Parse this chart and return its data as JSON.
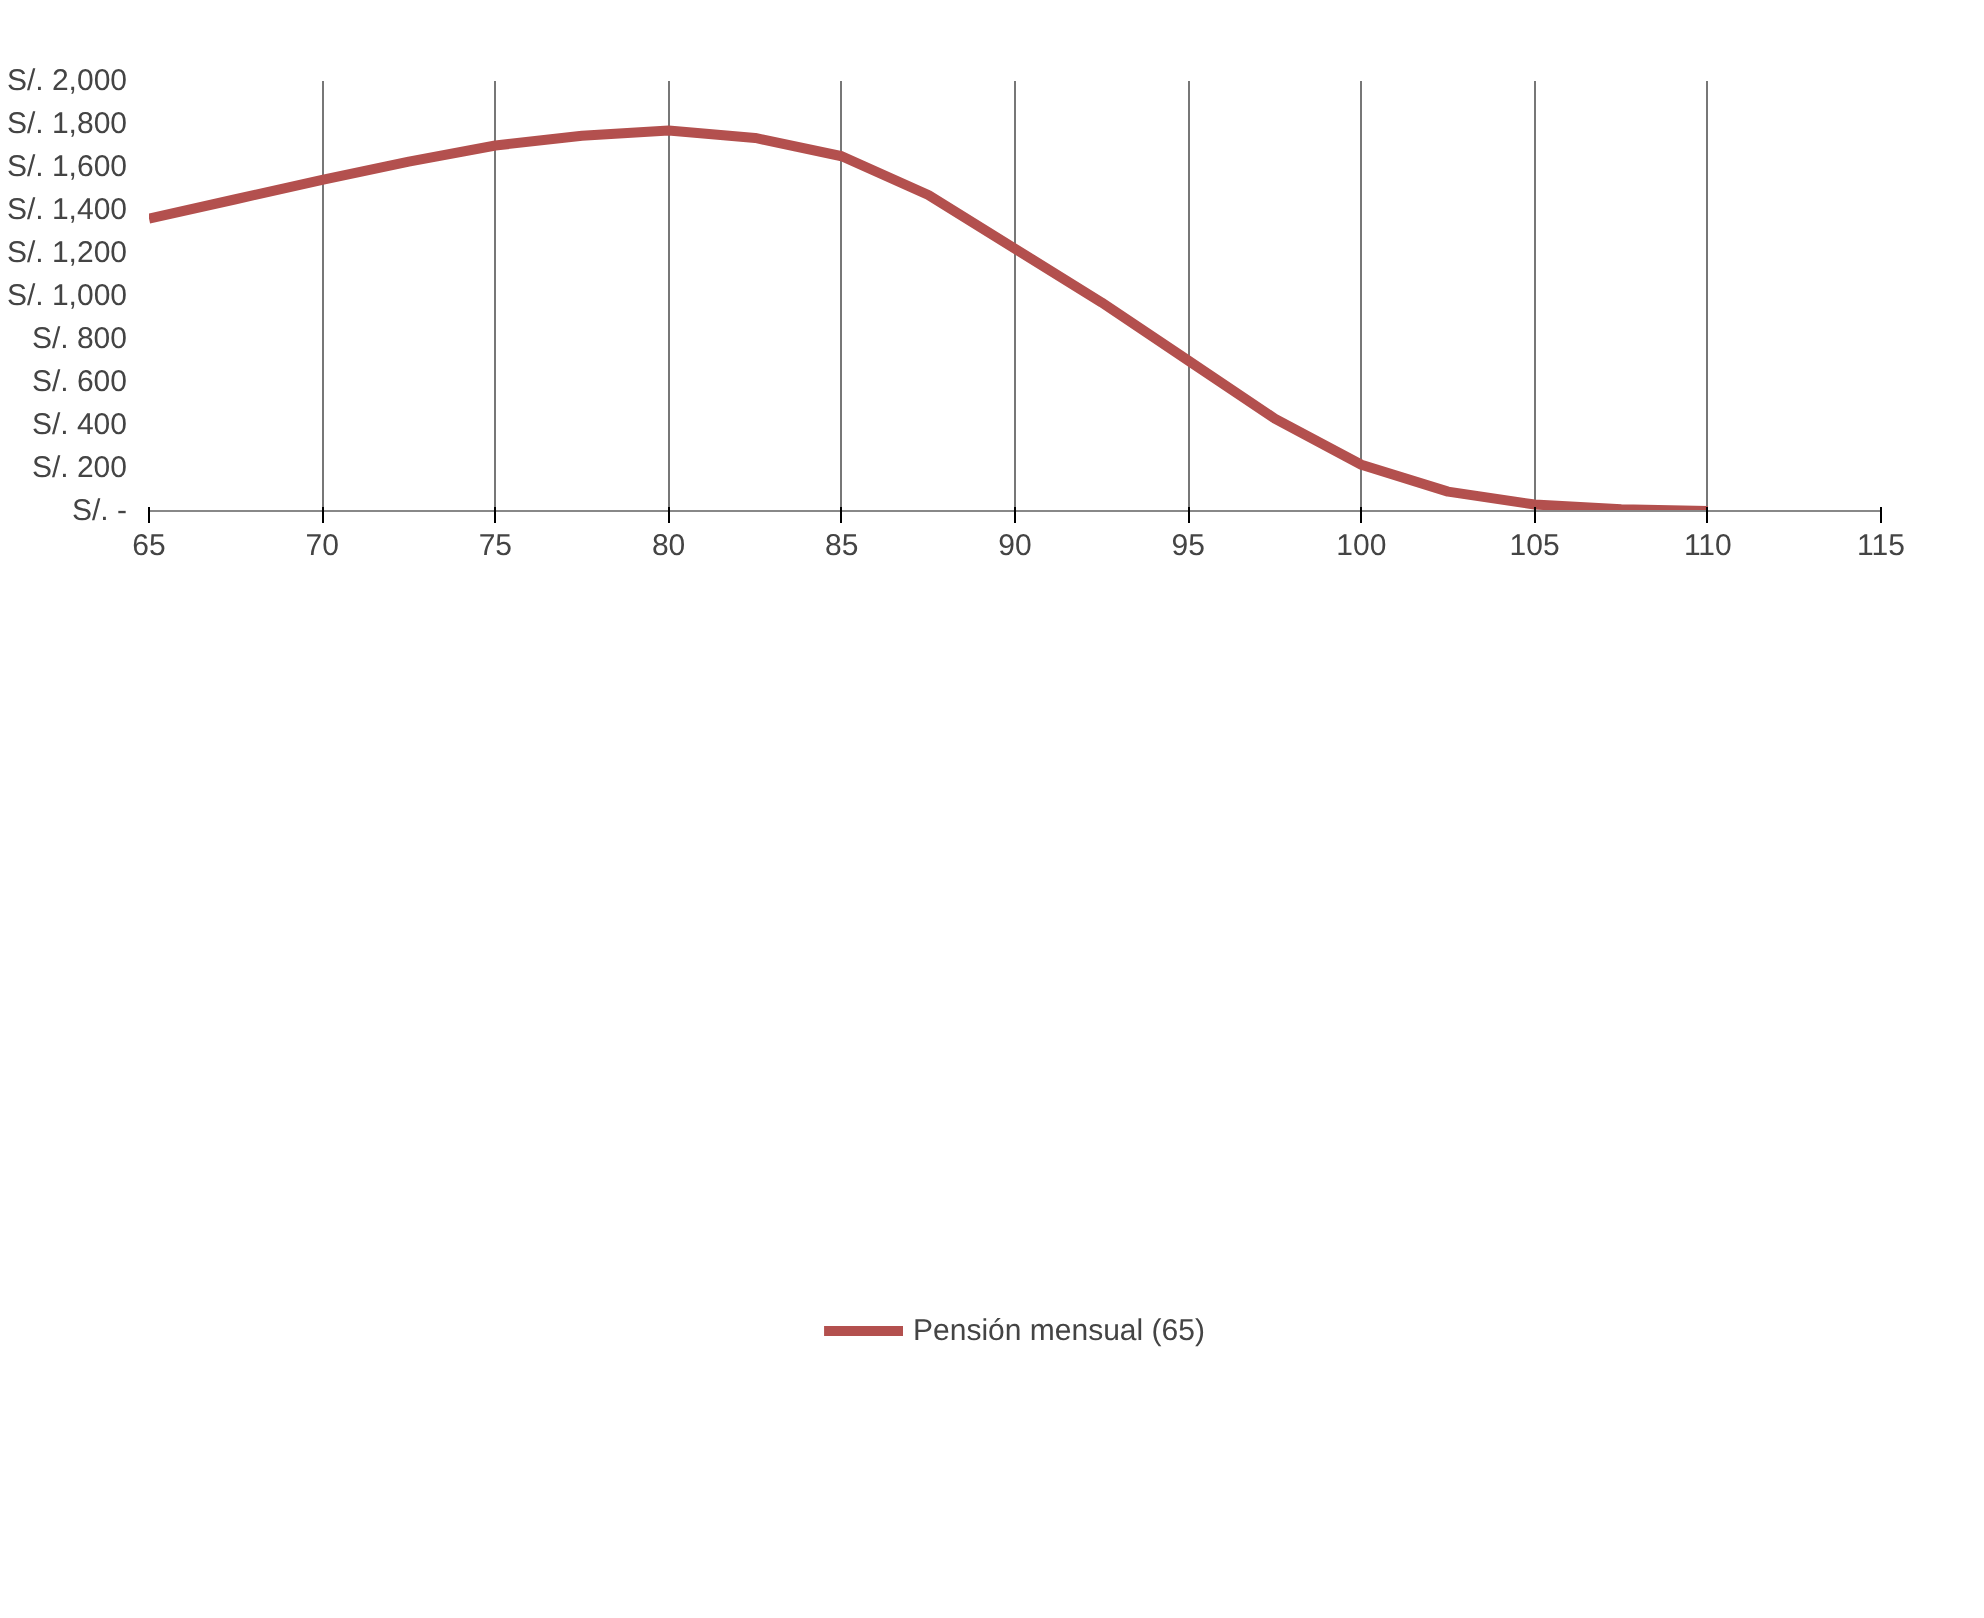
{
  "chart_data": {
    "type": "line",
    "x": [
      65,
      67.5,
      70,
      72.5,
      75,
      77.5,
      80,
      82.5,
      85,
      87.5,
      90,
      92.5,
      95,
      97.5,
      100,
      102.5,
      105,
      107.5,
      110
    ],
    "series": [
      {
        "name": "Pensión mensual (65)",
        "color": "#b3504e",
        "values": [
          1360,
          1450,
          1540,
          1625,
          1700,
          1745,
          1770,
          1735,
          1650,
          1470,
          1220,
          970,
          700,
          430,
          215,
          90,
          30,
          8,
          0
        ]
      }
    ],
    "xlim": [
      65,
      115
    ],
    "xticks": [
      65,
      70,
      75,
      80,
      85,
      90,
      95,
      100,
      105,
      110,
      115
    ],
    "ylim": [
      0,
      2000
    ],
    "yticks": [
      {
        "value": 0,
        "label": "S/. -"
      },
      {
        "value": 200,
        "label": "S/. 200"
      },
      {
        "value": 400,
        "label": "S/. 400"
      },
      {
        "value": 600,
        "label": "S/. 600"
      },
      {
        "value": 800,
        "label": "S/. 800"
      },
      {
        "value": 1000,
        "label": "S/. 1,000"
      },
      {
        "value": 1200,
        "label": "S/. 1,200"
      },
      {
        "value": 1400,
        "label": "S/. 1,400"
      },
      {
        "value": 1600,
        "label": "S/. 1,600"
      },
      {
        "value": 1800,
        "label": "S/. 1,800"
      },
      {
        "value": 2000,
        "label": "S/. 2,000"
      }
    ],
    "grid": "x",
    "legend": "bottom",
    "marker": "none",
    "line_style": "solid"
  }
}
